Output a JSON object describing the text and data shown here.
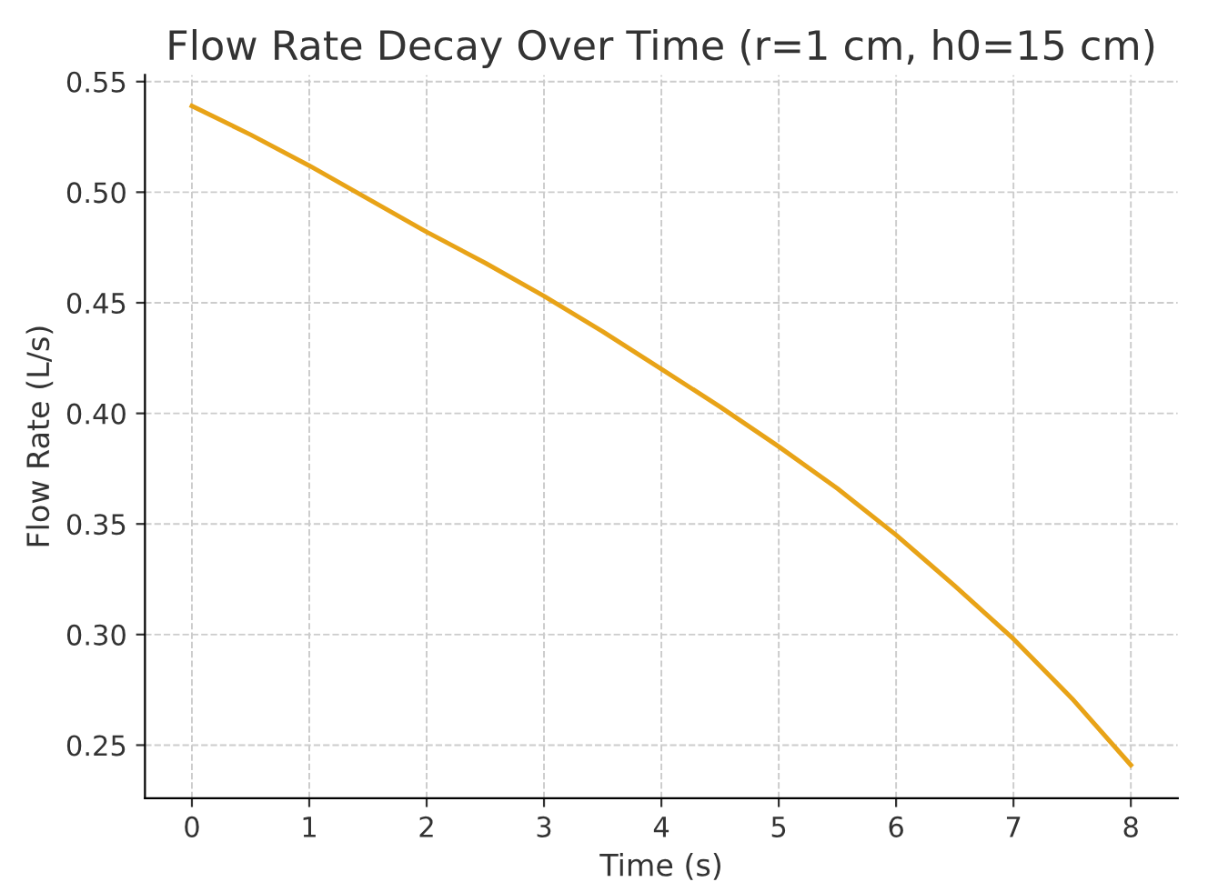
{
  "chart_data": {
    "type": "line",
    "title": "Flow Rate Decay Over Time (r=1 cm, h0=15 cm)",
    "xlabel": "Time (s)",
    "ylabel": "Flow Rate (L/s)",
    "x": [
      0,
      0.5,
      1,
      1.5,
      2,
      2.5,
      3,
      3.5,
      4,
      4.5,
      5,
      5.5,
      6,
      6.5,
      7,
      7.5,
      8
    ],
    "series": [
      {
        "color": "#e8a317",
        "values": [
          0.539,
          0.526,
          0.512,
          0.497,
          0.482,
          0.468,
          0.453,
          0.437,
          0.42,
          0.403,
          0.385,
          0.366,
          0.345,
          0.322,
          0.298,
          0.271,
          0.241
        ]
      }
    ],
    "xlim": [
      -0.4,
      8.4
    ],
    "ylim": [
      0.226,
      0.553
    ],
    "xticks": [
      0,
      1,
      2,
      3,
      4,
      5,
      6,
      7,
      8
    ],
    "yticks": [
      0.25,
      {
        "value": 0.3,
        "label": "0.30"
      },
      0.35,
      {
        "value": 0.4,
        "label": "0.40"
      },
      0.45,
      {
        "value": 0.5,
        "label": "0.50"
      },
      0.55
    ],
    "grid": true,
    "line_style": "solid",
    "marker": "none"
  }
}
